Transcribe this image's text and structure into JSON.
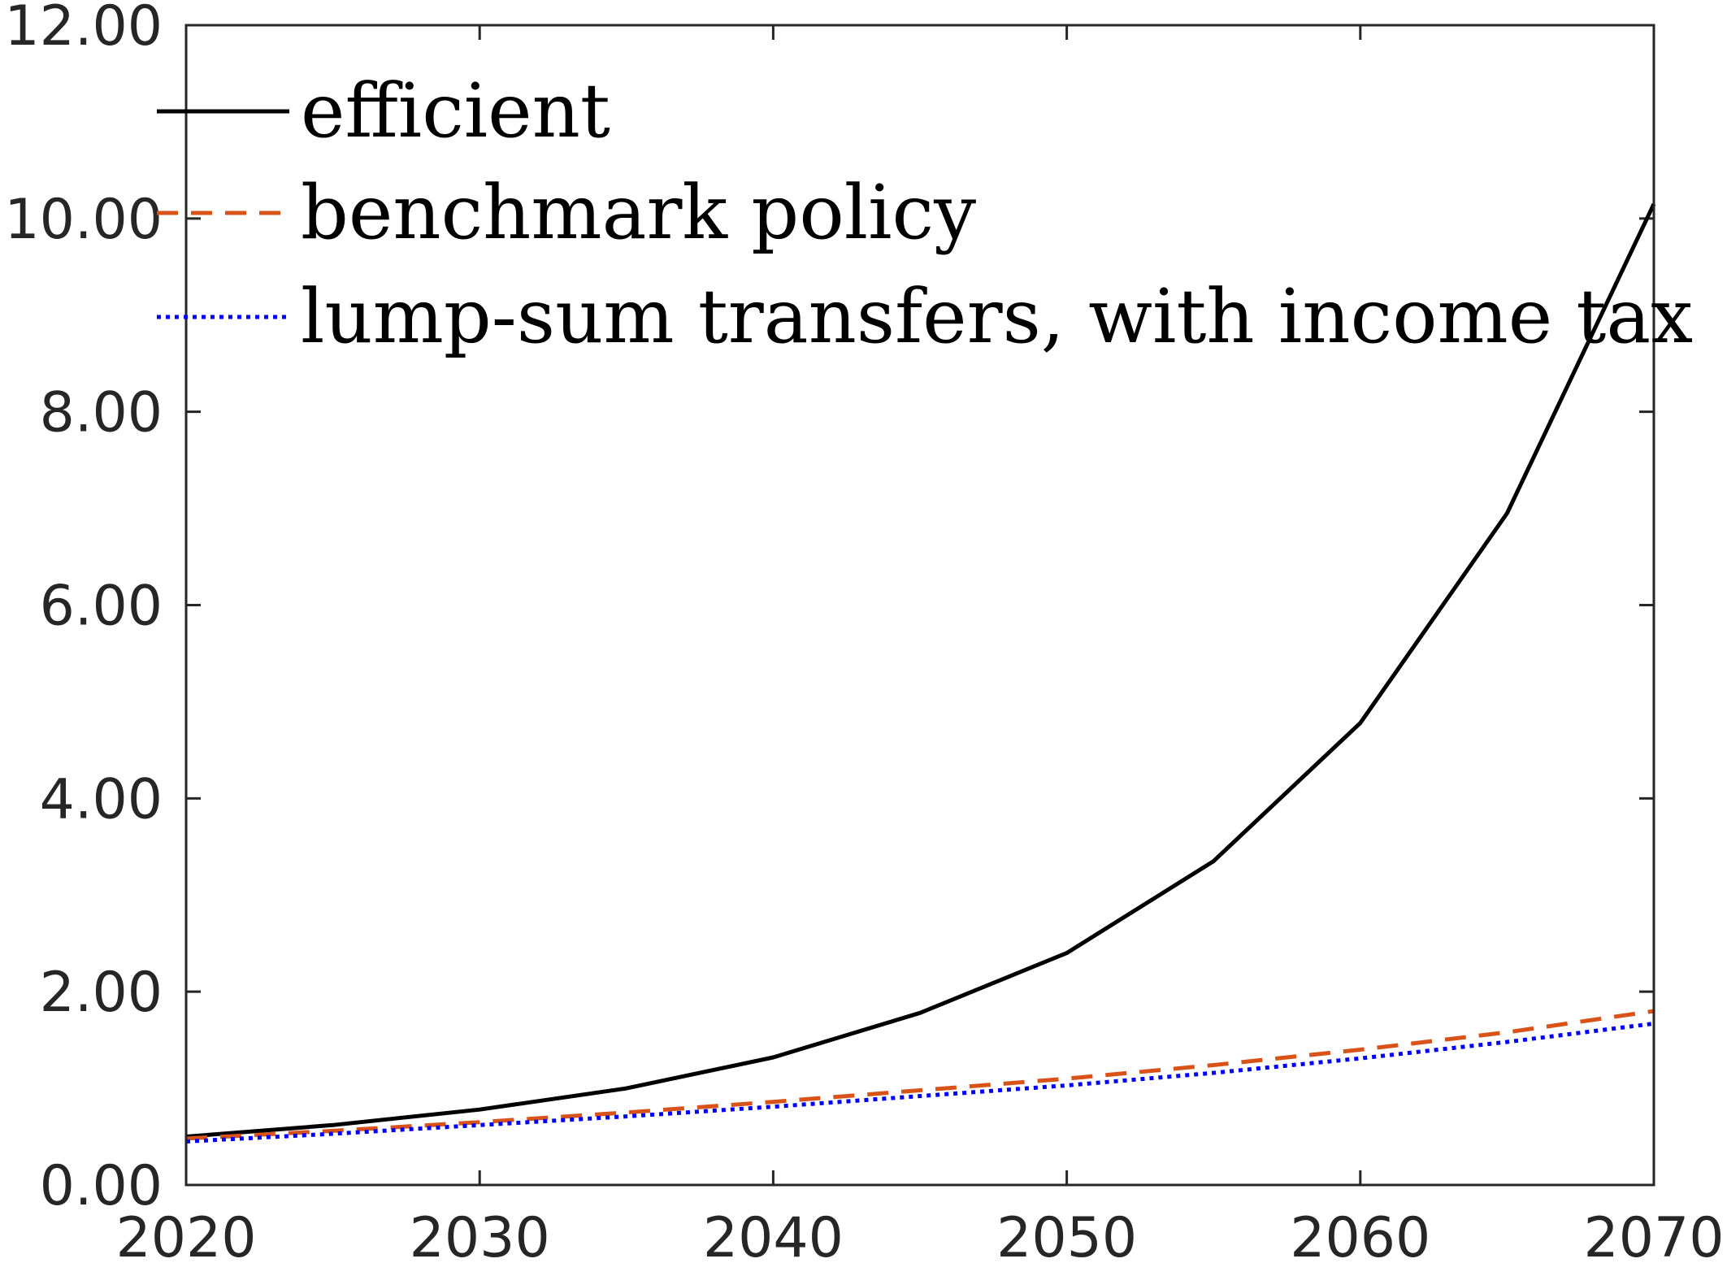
{
  "chart_data": {
    "type": "line",
    "title": "",
    "xlabel": "",
    "ylabel": "",
    "xlim": [
      2020,
      2070
    ],
    "ylim": [
      0,
      12
    ],
    "xticks": [
      2020,
      2030,
      2040,
      2050,
      2060,
      2070
    ],
    "yticks": [
      0,
      2,
      4,
      6,
      8,
      10,
      12
    ],
    "xtick_labels": [
      "2020",
      "2030",
      "2040",
      "2050",
      "2060",
      "2070"
    ],
    "ytick_labels": [
      "0.00",
      "2.00",
      "4.00",
      "6.00",
      "8.00",
      "10.00",
      "12.00"
    ],
    "grid": false,
    "legend_position": "top-left",
    "x": [
      2020,
      2025,
      2030,
      2035,
      2040,
      2045,
      2050,
      2055,
      2060,
      2065,
      2070
    ],
    "series": [
      {
        "name": "efficient",
        "color": "#000000",
        "style": "solid",
        "values": [
          0.5,
          0.62,
          0.78,
          1.0,
          1.32,
          1.78,
          2.4,
          3.35,
          4.78,
          6.95,
          10.15
        ]
      },
      {
        "name": "benchmark policy",
        "color": "#d95319",
        "style": "dashed",
        "values": [
          0.48,
          0.56,
          0.65,
          0.75,
          0.86,
          0.98,
          1.1,
          1.24,
          1.4,
          1.58,
          1.8
        ]
      },
      {
        "name": "lump-sum transfers, with income tax",
        "color": "#0000ff",
        "style": "dotted",
        "values": [
          0.45,
          0.53,
          0.62,
          0.71,
          0.81,
          0.92,
          1.03,
          1.16,
          1.31,
          1.48,
          1.67
        ]
      }
    ]
  }
}
